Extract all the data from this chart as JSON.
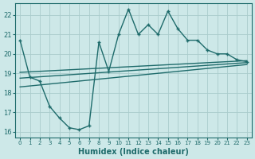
{
  "xlabel": "Humidex (Indice chaleur)",
  "bg_color": "#cde8e8",
  "grid_color": "#aacccc",
  "line_color": "#1e6b6b",
  "xlim": [
    -0.5,
    23.5
  ],
  "ylim": [
    15.7,
    22.6
  ],
  "yticks": [
    16,
    17,
    18,
    19,
    20,
    21,
    22
  ],
  "xticks": [
    0,
    1,
    2,
    3,
    4,
    5,
    6,
    7,
    8,
    9,
    10,
    11,
    12,
    13,
    14,
    15,
    16,
    17,
    18,
    19,
    20,
    21,
    22,
    23
  ],
  "series": [
    {
      "x": [
        0,
        1,
        2,
        3,
        4,
        5,
        6,
        7,
        8,
        9,
        10,
        11,
        12,
        13,
        14,
        15,
        16,
        17,
        18,
        19,
        20,
        21,
        22,
        23
      ],
      "y": [
        20.7,
        18.8,
        18.6,
        17.3,
        16.7,
        16.2,
        16.1,
        16.3,
        20.6,
        19.1,
        21.0,
        22.3,
        21.0,
        21.5,
        21.0,
        22.2,
        21.3,
        20.7,
        20.7,
        20.2,
        20.0,
        20.0,
        19.7,
        19.6
      ],
      "marker": "+",
      "lw": 1.0,
      "ms": 3.5
    },
    {
      "x": [
        0,
        23
      ],
      "y": [
        19.05,
        19.65
      ],
      "marker": null,
      "lw": 1.0,
      "ms": 0
    },
    {
      "x": [
        0,
        23
      ],
      "y": [
        18.75,
        19.55
      ],
      "marker": null,
      "lw": 1.0,
      "ms": 0
    },
    {
      "x": [
        0,
        23
      ],
      "y": [
        18.3,
        19.45
      ],
      "marker": null,
      "lw": 1.0,
      "ms": 0
    }
  ]
}
